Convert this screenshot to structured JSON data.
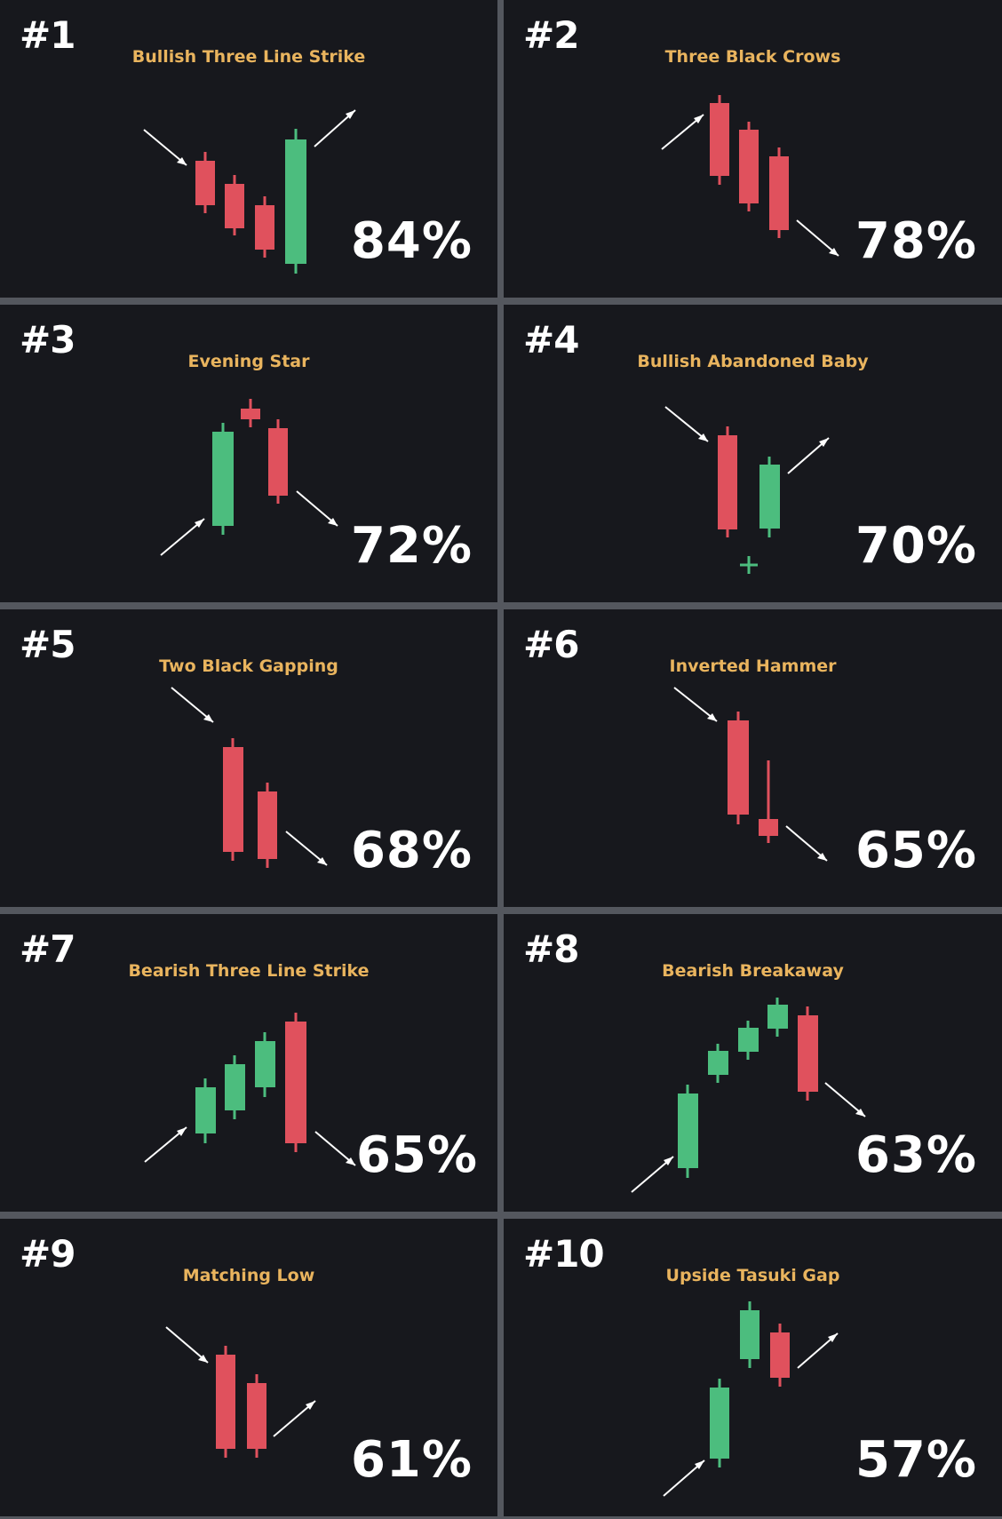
{
  "colors": {
    "bullish": "#4cbd7e",
    "bearish": "#e0515d",
    "title": "#e9b45e",
    "text": "#ffffff",
    "arrow": "#ffffff"
  },
  "patterns": [
    {
      "rank": "#1",
      "name": "Bullish Three Line Strike",
      "rate": "84%"
    },
    {
      "rank": "#2",
      "name": "Three Black Crows",
      "rate": "78%"
    },
    {
      "rank": "#3",
      "name": "Evening Star",
      "rate": "72%"
    },
    {
      "rank": "#4",
      "name": "Bullish Abandoned Baby",
      "rate": "70%"
    },
    {
      "rank": "#5",
      "name": "Two Black Gapping",
      "rate": "68%"
    },
    {
      "rank": "#6",
      "name": "Inverted Hammer",
      "rate": "65%"
    },
    {
      "rank": "#7",
      "name": "Bearish Three Line Strike",
      "rate": "65%"
    },
    {
      "rank": "#8",
      "name": "Bearish Breakaway",
      "rate": "63%"
    },
    {
      "rank": "#9",
      "name": "Matching Low",
      "rate": "61%"
    },
    {
      "rank": "#10",
      "name": "Upside Tasuki Gap",
      "rate": "57%"
    }
  ]
}
